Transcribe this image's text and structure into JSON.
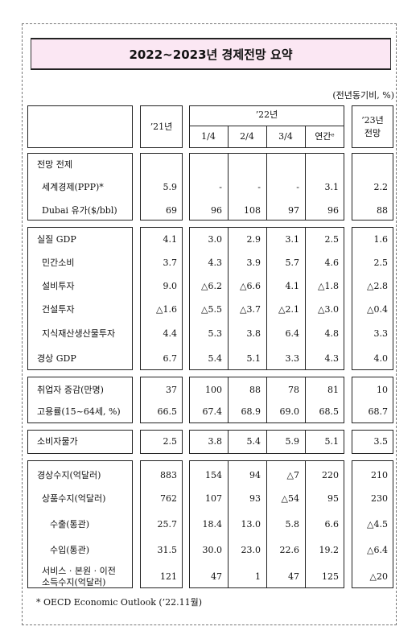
{
  "title": "2022~2023년 경제전망 요약",
  "unit_note": "(전년동기비, %)",
  "headers": {
    "y21": "’21년",
    "y22": "’22년",
    "q1": "1/4",
    "q2": "2/4",
    "q3": "3/4",
    "annual": "연간ᵉ",
    "y23_line1": "’23년",
    "y23_line2": "전망"
  },
  "groups": [
    {
      "rows": [
        {
          "label": "전망 전제",
          "indent": 0,
          "values": [
            "",
            "",
            "",
            "",
            "",
            ""
          ]
        },
        {
          "label": "세계경제(PPP)*",
          "indent": 1,
          "values": [
            "5.9",
            "-",
            "-",
            "-",
            "3.1",
            "2.2"
          ]
        },
        {
          "label": "Dubai 유가($/bbl)",
          "indent": 1,
          "values": [
            "69",
            "96",
            "108",
            "97",
            "96",
            "88"
          ]
        }
      ]
    },
    {
      "rows": [
        {
          "label": "실질 GDP",
          "indent": 0,
          "values": [
            "4.1",
            "3.0",
            "2.9",
            "3.1",
            "2.5",
            "1.6"
          ]
        },
        {
          "label": "민간소비",
          "indent": 1,
          "values": [
            "3.7",
            "4.3",
            "3.9",
            "5.7",
            "4.6",
            "2.5"
          ]
        },
        {
          "label": "설비투자",
          "indent": 1,
          "values": [
            "9.0",
            "△6.2",
            "△6.6",
            "4.1",
            "△1.8",
            "△2.8"
          ]
        },
        {
          "label": "건설투자",
          "indent": 1,
          "values": [
            "△1.6",
            "△5.5",
            "△3.7",
            "△2.1",
            "△3.0",
            "△0.4"
          ]
        },
        {
          "label": "지식재산생산물투자",
          "indent": 1,
          "values": [
            "4.4",
            "5.3",
            "3.8",
            "6.4",
            "4.8",
            "3.3"
          ]
        },
        {
          "label": "경상 GDP",
          "indent": 0,
          "values": [
            "6.7",
            "5.4",
            "5.1",
            "3.3",
            "4.3",
            "4.0"
          ]
        }
      ]
    },
    {
      "rows": [
        {
          "label": "취업자 증감(만명)",
          "indent": 0,
          "values": [
            "37",
            "100",
            "88",
            "78",
            "81",
            "10"
          ]
        },
        {
          "label": "고용률(15~64세, %)",
          "indent": 0,
          "values": [
            "66.5",
            "67.4",
            "68.9",
            "69.0",
            "68.5",
            "68.7"
          ]
        }
      ]
    },
    {
      "rows": [
        {
          "label": "소비자물가",
          "indent": 0,
          "values": [
            "2.5",
            "3.8",
            "5.4",
            "5.9",
            "5.1",
            "3.5"
          ]
        }
      ]
    },
    {
      "rows": [
        {
          "label": "경상수지(억달러)",
          "indent": 0,
          "values": [
            "883",
            "154",
            "94",
            "△7",
            "220",
            "210"
          ]
        },
        {
          "label": "상품수지(억달러)",
          "indent": 1,
          "values": [
            "762",
            "107",
            "93",
            "△54",
            "95",
            "230"
          ]
        },
        {
          "label": "수출(통관)",
          "indent": 2,
          "values": [
            "25.7",
            "18.4",
            "13.0",
            "5.8",
            "6.6",
            "△4.5"
          ]
        },
        {
          "label": "수입(통관)",
          "indent": 2,
          "values": [
            "31.5",
            "30.0",
            "23.0",
            "22.6",
            "19.2",
            "△6.4"
          ]
        },
        {
          "label": "서비스 · 본원 · 이전\n소득수지(억달러)",
          "indent": 1,
          "values": [
            "121",
            "47",
            "1",
            "47",
            "125",
            "△20"
          ]
        }
      ]
    }
  ],
  "footnote": "* OECD Economic Outlook (’22.11월)"
}
